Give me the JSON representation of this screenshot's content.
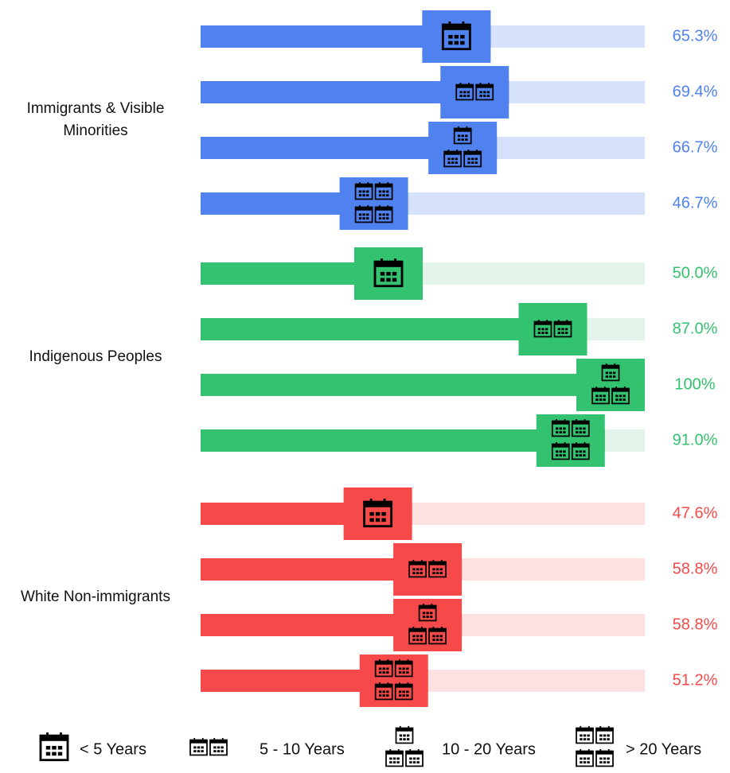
{
  "chart_data": {
    "type": "bar",
    "categories": [
      "< 5 Years",
      "5 - 10 Years",
      "10 - 20 Years",
      "> 20 Years"
    ],
    "xlim": [
      0,
      100
    ],
    "series": [
      {
        "name": "Immigrants & Visible Minorities",
        "color": "#4f81ef",
        "track_color": "#d6e2fb",
        "values": [
          65.3,
          69.4,
          66.7,
          46.7
        ],
        "value_labels": [
          "65.3%",
          "69.4%",
          "66.7%",
          "46.7%"
        ]
      },
      {
        "name": "Indigenous Peoples",
        "color": "#33c26f",
        "track_color": "#e2f4e9",
        "values": [
          50.0,
          87.0,
          100,
          91.0
        ],
        "value_labels": [
          "50.0%",
          "87.0%",
          "100%",
          "91.0%"
        ]
      },
      {
        "name": "White Non-immigrants",
        "color": "#f64a4a",
        "track_color": "#fde0e0",
        "values": [
          47.6,
          58.8,
          58.8,
          51.2
        ],
        "value_labels": [
          "47.6%",
          "58.8%",
          "58.8%",
          "51.2%"
        ]
      }
    ]
  }
}
